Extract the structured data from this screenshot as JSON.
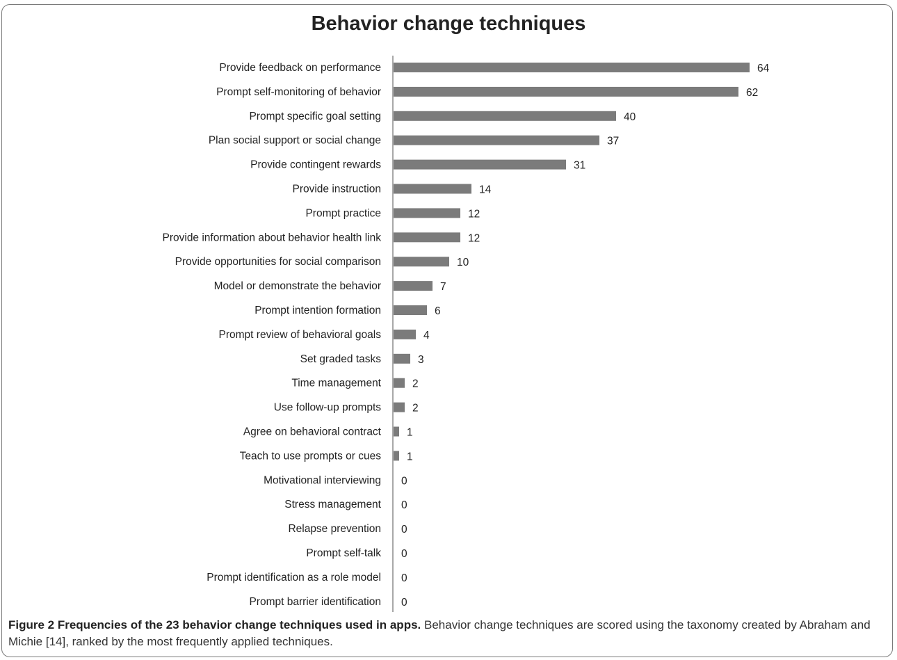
{
  "chart_data": {
    "type": "bar",
    "orientation": "horizontal",
    "title": "Behavior change techniques",
    "xlabel": "",
    "ylabel": "",
    "xlim": [
      0,
      64
    ],
    "grid": false,
    "bar_color": "#7b7b7b",
    "categories": [
      "Provide feedback on performance",
      "Prompt self-monitoring of behavior",
      "Prompt specific goal setting",
      "Plan social support or social change",
      "Provide contingent rewards",
      "Provide instruction",
      "Prompt practice",
      "Provide information about behavior health link",
      "Provide opportunities for social comparison",
      "Model or demonstrate the behavior",
      "Prompt intention formation",
      "Prompt review of behavioral goals",
      "Set graded tasks",
      "Time management",
      "Use follow-up prompts",
      "Agree on behavioral contract",
      "Teach to use prompts or cues",
      "Motivational interviewing",
      "Stress management",
      "Relapse prevention",
      "Prompt self-talk",
      "Prompt identification as a role model",
      "Prompt barrier identification"
    ],
    "values": [
      64,
      62,
      40,
      37,
      31,
      14,
      12,
      12,
      10,
      7,
      6,
      4,
      3,
      2,
      2,
      1,
      1,
      0,
      0,
      0,
      0,
      0,
      0
    ]
  },
  "caption": {
    "label": "Figure 2 Frequencies of the 23 behavior change techniques used in apps.",
    "text": " Behavior change techniques are scored using the taxonomy created by Abraham and Michie [14], ranked by the most frequently applied techniques."
  }
}
